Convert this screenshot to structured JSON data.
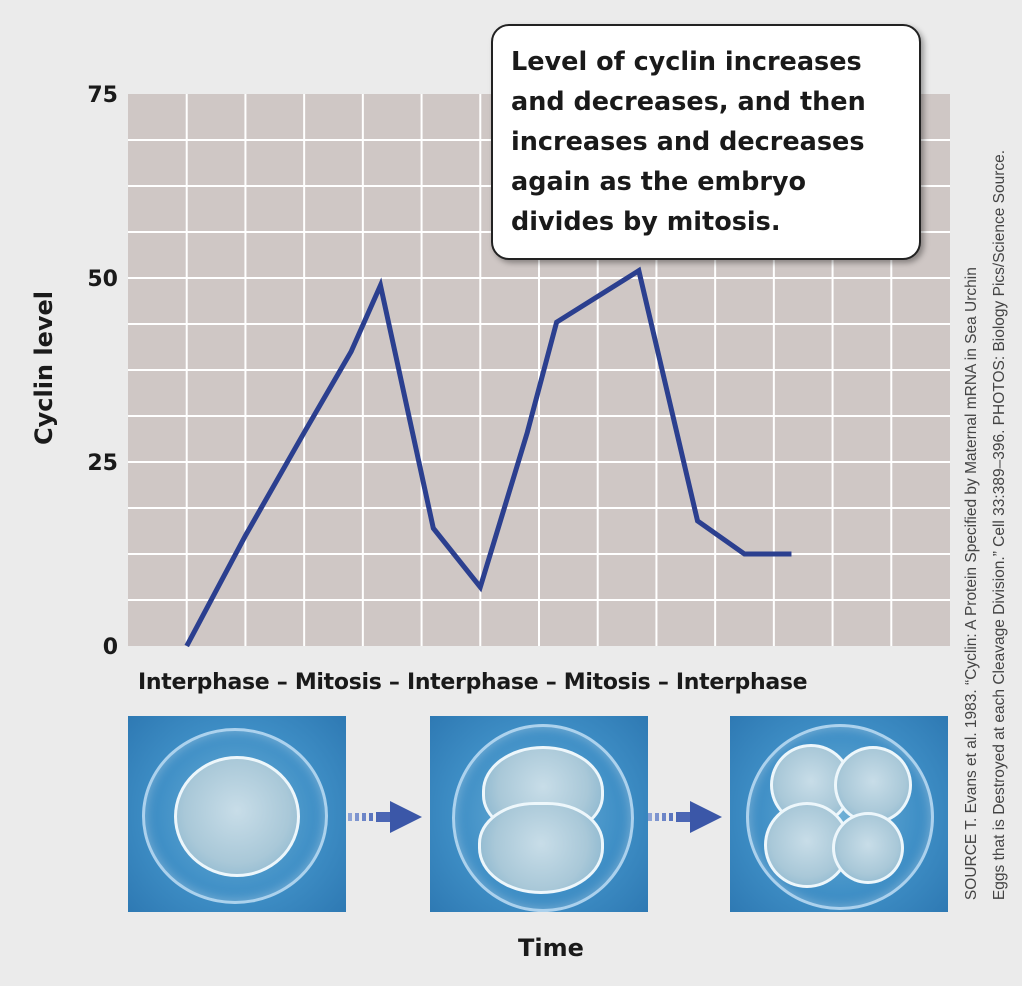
{
  "chart_data": {
    "type": "line",
    "ylabel": "Cyclin level",
    "xlabel": "Time",
    "ylim": [
      0,
      75
    ],
    "yticks": [
      0,
      25,
      50,
      75
    ],
    "grid": true,
    "series": [
      {
        "color": "#2b3f8f",
        "points": [
          [
            1,
            0
          ],
          [
            2,
            15
          ],
          [
            3,
            29
          ],
          [
            3.8,
            40
          ],
          [
            4.3,
            49
          ],
          [
            5.2,
            16
          ],
          [
            6,
            8
          ],
          [
            6.8,
            29
          ],
          [
            7.3,
            44
          ],
          [
            8.1,
            48
          ],
          [
            8.7,
            51
          ],
          [
            9.7,
            17
          ],
          [
            10.5,
            12.5
          ],
          [
            11.3,
            12.5
          ]
        ]
      }
    ],
    "phase_labels": "Interphase – Mitosis – Interphase – Mitosis – Interphase",
    "annotation": [
      "Level of cyclin increases",
      "and decreases, and then",
      "increases and decreases",
      "again as the embryo",
      "divides by mitosis."
    ]
  },
  "source": [
    "SOURCE T. Evans et al. 1983. “Cyclin: A Protein Specified by Maternal mRNA in Sea Urchin",
    "Eggs that is Destroyed at each Cleavage Division.” Cell 33:389–396. PHOTOS: Biology Pics/Science Source."
  ],
  "photos": [
    {
      "icon": "one-cell-embryo-photo"
    },
    {
      "icon": "two-cell-embryo-photo"
    },
    {
      "icon": "four-cell-embryo-photo"
    }
  ],
  "colors": {
    "plot_bg": "#cfc7c5",
    "grid": "#ffffff",
    "line": "#2b3f8f",
    "arrow": "#3b57a8"
  }
}
